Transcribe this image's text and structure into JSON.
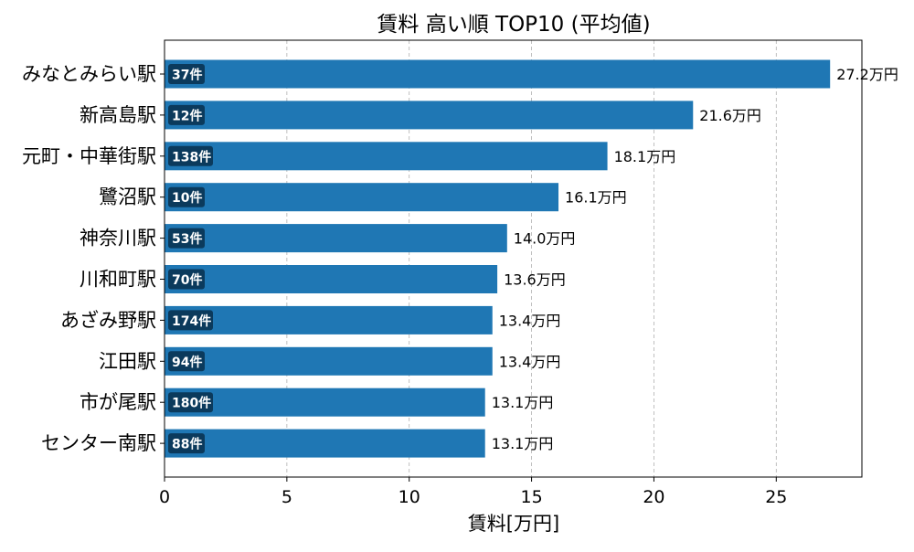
{
  "chart_data": {
    "type": "bar",
    "orientation": "horizontal",
    "title": "賃料 高い順 TOP10 (平均値)",
    "xlabel": "賃料[万円]",
    "ylabel": "",
    "xlim": [
      0,
      28.5
    ],
    "xticks": [
      0,
      5,
      10,
      15,
      20,
      25
    ],
    "grid": "x-dashed",
    "bar_color": "#1f77b4",
    "badge_color": "#0b3a5c",
    "value_suffix": "万円",
    "categories": [
      "みなとみらい駅",
      "新高島駅",
      "元町・中華街駅",
      "鷺沼駅",
      "神奈川駅",
      "川和町駅",
      "あざみ野駅",
      "江田駅",
      "市が尾駅",
      "センター南駅"
    ],
    "values": [
      27.2,
      21.6,
      18.1,
      16.1,
      14.0,
      13.6,
      13.4,
      13.4,
      13.1,
      13.1
    ],
    "value_labels": [
      "27.2万円",
      "21.6万円",
      "18.1万円",
      "16.1万円",
      "14.0万円",
      "13.6万円",
      "13.4万円",
      "13.4万円",
      "13.1万円",
      "13.1万円"
    ],
    "counts": [
      "37件",
      "12件",
      "138件",
      "10件",
      "53件",
      "70件",
      "174件",
      "94件",
      "180件",
      "88件"
    ]
  }
}
